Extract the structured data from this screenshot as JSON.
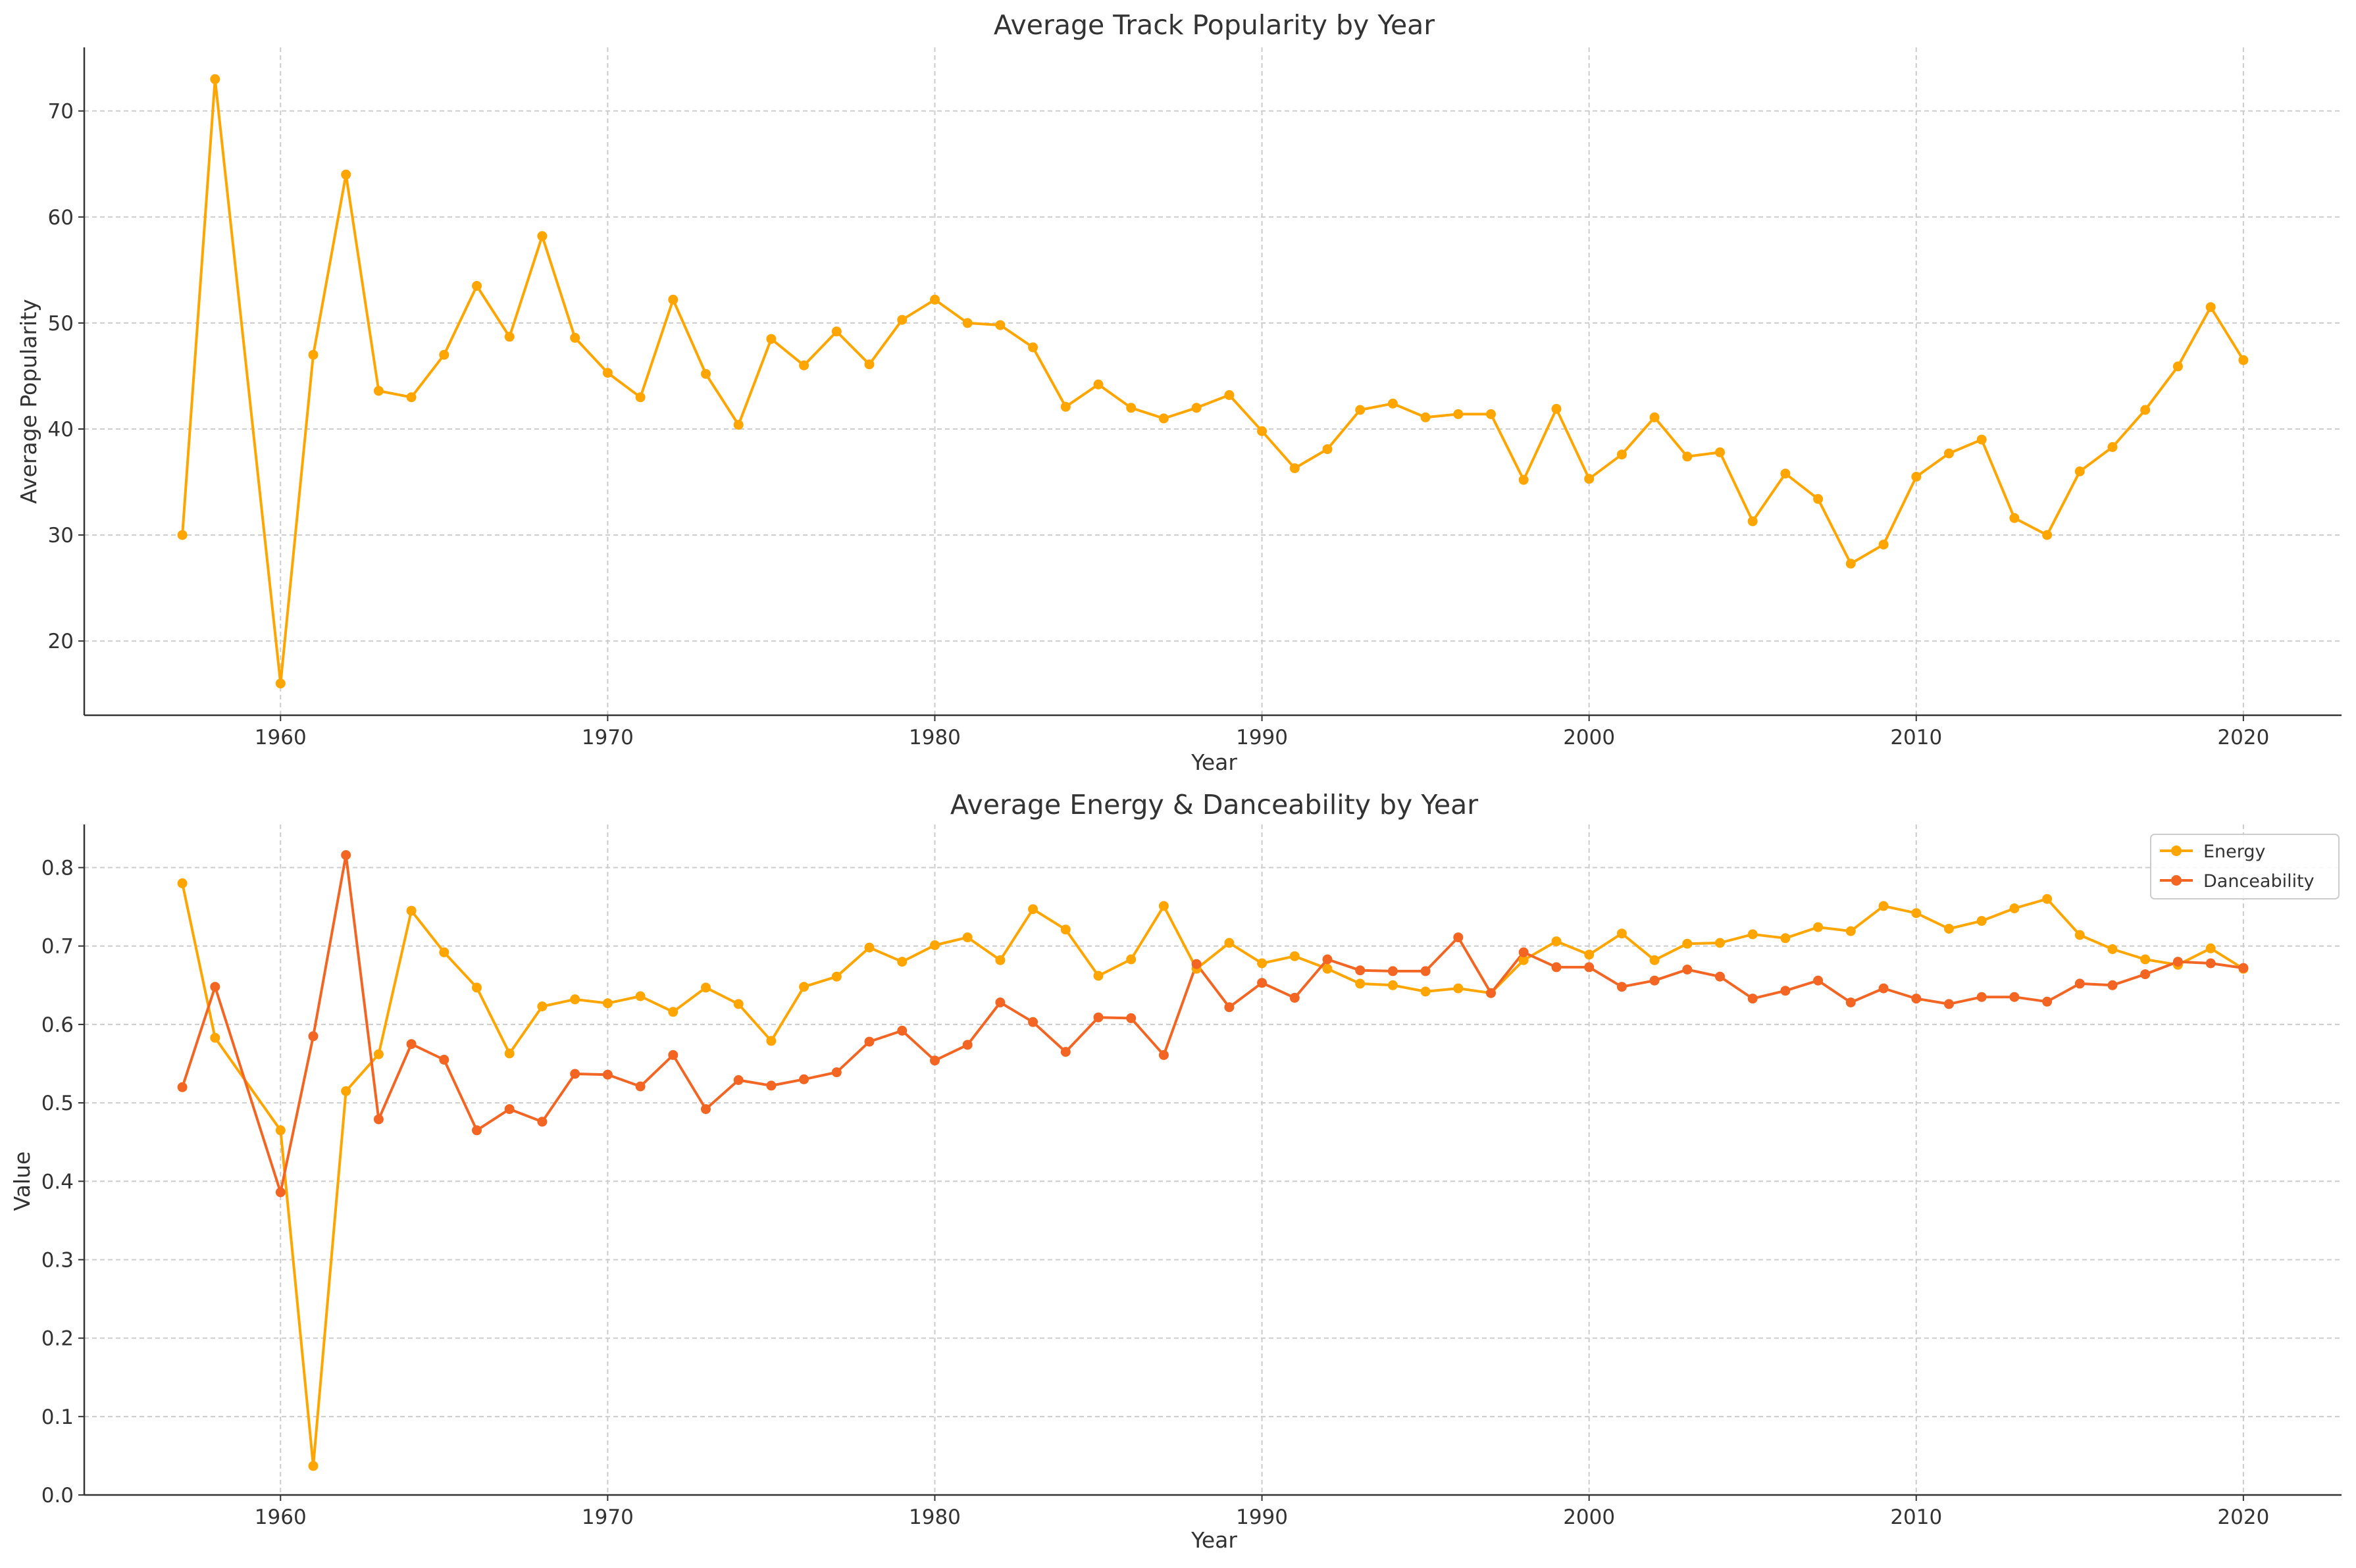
{
  "chart_data": [
    {
      "type": "line",
      "title": "Average Track Popularity by Year",
      "xlabel": "Year",
      "ylabel": "Average Popularity",
      "xlim": [
        1954,
        2023
      ],
      "ylim": [
        13,
        76
      ],
      "xticks": [
        1960,
        1970,
        1980,
        1990,
        2000,
        2010,
        2020
      ],
      "yticks": [
        20,
        30,
        40,
        50,
        60,
        70
      ],
      "grid": true,
      "x": [
        1957,
        1958,
        1960,
        1961,
        1962,
        1963,
        1964,
        1965,
        1966,
        1967,
        1968,
        1969,
        1970,
        1971,
        1972,
        1973,
        1974,
        1975,
        1976,
        1977,
        1978,
        1979,
        1980,
        1981,
        1982,
        1983,
        1984,
        1985,
        1986,
        1987,
        1988,
        1989,
        1990,
        1991,
        1992,
        1993,
        1994,
        1995,
        1996,
        1997,
        1998,
        1999,
        2000,
        2001,
        2002,
        2003,
        2004,
        2005,
        2006,
        2007,
        2008,
        2009,
        2010,
        2011,
        2012,
        2013,
        2014,
        2015,
        2016,
        2017,
        2018,
        2019,
        2020
      ],
      "series": [
        {
          "color": "#FFA500",
          "values": [
            30,
            73,
            16,
            47,
            64,
            43.6,
            43,
            47,
            53.5,
            48.7,
            58.2,
            48.6,
            45.3,
            43,
            52.2,
            45.2,
            40.4,
            48.5,
            46,
            49.2,
            46.1,
            50.3,
            52.2,
            50,
            49.8,
            47.7,
            42.1,
            44.2,
            42,
            41,
            42,
            43.2,
            39.8,
            36.3,
            38.1,
            41.8,
            42.4,
            41.1,
            41.4,
            41.4,
            35.2,
            41.9,
            35.3,
            37.6,
            41.1,
            37.4,
            37.8,
            31.3,
            35.8,
            33.4,
            27.3,
            29.1,
            35.5,
            37.7,
            39,
            31.6,
            30,
            36,
            38.3,
            41.8,
            45.9,
            51.5,
            46.5
          ]
        }
      ]
    },
    {
      "type": "line",
      "title": "Average Energy & Danceability by Year",
      "xlabel": "Year",
      "ylabel": "Value",
      "xlim": [
        1954,
        2023
      ],
      "ylim": [
        0,
        0.855
      ],
      "xticks": [
        1960,
        1970,
        1980,
        1990,
        2000,
        2010,
        2020
      ],
      "yticks": [
        0.0,
        0.1,
        0.2,
        0.3,
        0.4,
        0.5,
        0.6,
        0.7,
        0.8
      ],
      "ytick_labels": [
        "0.0",
        "0.1",
        "0.2",
        "0.3",
        "0.4",
        "0.5",
        "0.6",
        "0.7",
        "0.8"
      ],
      "grid": true,
      "legend": "top-right",
      "x": [
        1957,
        1958,
        1960,
        1961,
        1962,
        1963,
        1964,
        1965,
        1966,
        1967,
        1968,
        1969,
        1970,
        1971,
        1972,
        1973,
        1974,
        1975,
        1976,
        1977,
        1978,
        1979,
        1980,
        1981,
        1982,
        1983,
        1984,
        1985,
        1986,
        1987,
        1988,
        1989,
        1990,
        1991,
        1992,
        1993,
        1994,
        1995,
        1996,
        1997,
        1998,
        1999,
        2000,
        2001,
        2002,
        2003,
        2004,
        2005,
        2006,
        2007,
        2008,
        2009,
        2010,
        2011,
        2012,
        2013,
        2014,
        2015,
        2016,
        2017,
        2018,
        2019,
        2020
      ],
      "series": [
        {
          "name": "Energy",
          "color": "#FFA500",
          "values": [
            0.78,
            0.583,
            0.465,
            0.037,
            0.515,
            0.562,
            0.745,
            0.692,
            0.647,
            0.563,
            0.623,
            0.632,
            0.627,
            0.636,
            0.616,
            0.647,
            0.626,
            0.579,
            0.648,
            0.661,
            0.698,
            0.68,
            0.701,
            0.711,
            0.682,
            0.747,
            0.721,
            0.662,
            0.683,
            0.751,
            0.671,
            0.704,
            0.678,
            0.687,
            0.671,
            0.652,
            0.65,
            0.642,
            0.646,
            0.64,
            0.682,
            0.706,
            0.689,
            0.716,
            0.682,
            0.703,
            0.704,
            0.715,
            0.71,
            0.724,
            0.719,
            0.751,
            0.742,
            0.722,
            0.732,
            0.748,
            0.76,
            0.714,
            0.696,
            0.683,
            0.676,
            0.697,
            0.671
          ]
        },
        {
          "name": "Danceability",
          "color": "#F26522",
          "values": [
            0.52,
            0.648,
            0.386,
            0.585,
            0.816,
            0.479,
            0.575,
            0.555,
            0.465,
            0.492,
            0.476,
            0.537,
            0.536,
            0.521,
            0.561,
            0.492,
            0.529,
            0.522,
            0.53,
            0.539,
            0.578,
            0.592,
            0.554,
            0.574,
            0.628,
            0.603,
            0.565,
            0.609,
            0.608,
            0.561,
            0.677,
            0.622,
            0.653,
            0.634,
            0.683,
            0.669,
            0.668,
            0.668,
            0.711,
            0.64,
            0.692,
            0.673,
            0.673,
            0.648,
            0.656,
            0.67,
            0.661,
            0.633,
            0.643,
            0.656,
            0.628,
            0.646,
            0.633,
            0.626,
            0.635,
            0.635,
            0.629,
            0.652,
            0.65,
            0.664,
            0.68,
            0.678,
            0.672
          ]
        }
      ]
    }
  ]
}
